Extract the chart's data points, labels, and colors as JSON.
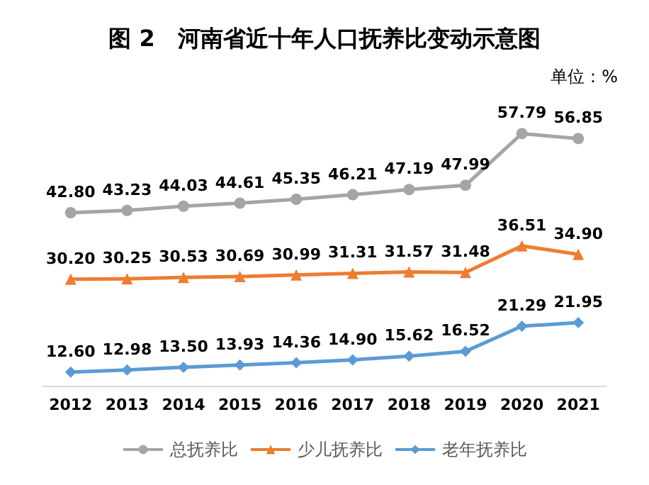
{
  "chart_data": {
    "type": "line",
    "title": "图 2　河南省近十年人口抚养比变动示意图",
    "annotations": [
      "单位：%"
    ],
    "categories": [
      "2012",
      "2013",
      "2014",
      "2015",
      "2016",
      "2017",
      "2018",
      "2019",
      "2020",
      "2021"
    ],
    "series": [
      {
        "name": "总抚养比",
        "color": "#a5a5a5",
        "marker": "circle",
        "values": [
          42.8,
          43.23,
          44.03,
          44.61,
          45.35,
          46.21,
          47.19,
          47.99,
          57.79,
          56.85
        ],
        "value_labels": [
          "42.80",
          "43.23",
          "44.03",
          "44.61",
          "45.35",
          "46.21",
          "47.19",
          "47.99",
          "57.79",
          "56.85"
        ]
      },
      {
        "name": "少儿抚养比",
        "color": "#ed7d31",
        "marker": "triangle",
        "values": [
          30.2,
          30.25,
          30.53,
          30.69,
          30.99,
          31.31,
          31.57,
          31.48,
          36.51,
          34.9
        ],
        "value_labels": [
          "30.20",
          "30.25",
          "30.53",
          "30.69",
          "30.99",
          "31.31",
          "31.57",
          "31.48",
          "36.51",
          "34.90"
        ]
      },
      {
        "name": "老年抚养比",
        "color": "#5b9bd5",
        "marker": "diamond",
        "values": [
          12.6,
          12.98,
          13.5,
          13.93,
          14.36,
          14.9,
          15.62,
          16.52,
          21.29,
          21.95
        ],
        "value_labels": [
          "12.60",
          "12.98",
          "13.50",
          "13.93",
          "14.36",
          "14.90",
          "15.62",
          "16.52",
          "21.29",
          "21.95"
        ]
      }
    ],
    "legend": "bottom",
    "grid": false
  }
}
